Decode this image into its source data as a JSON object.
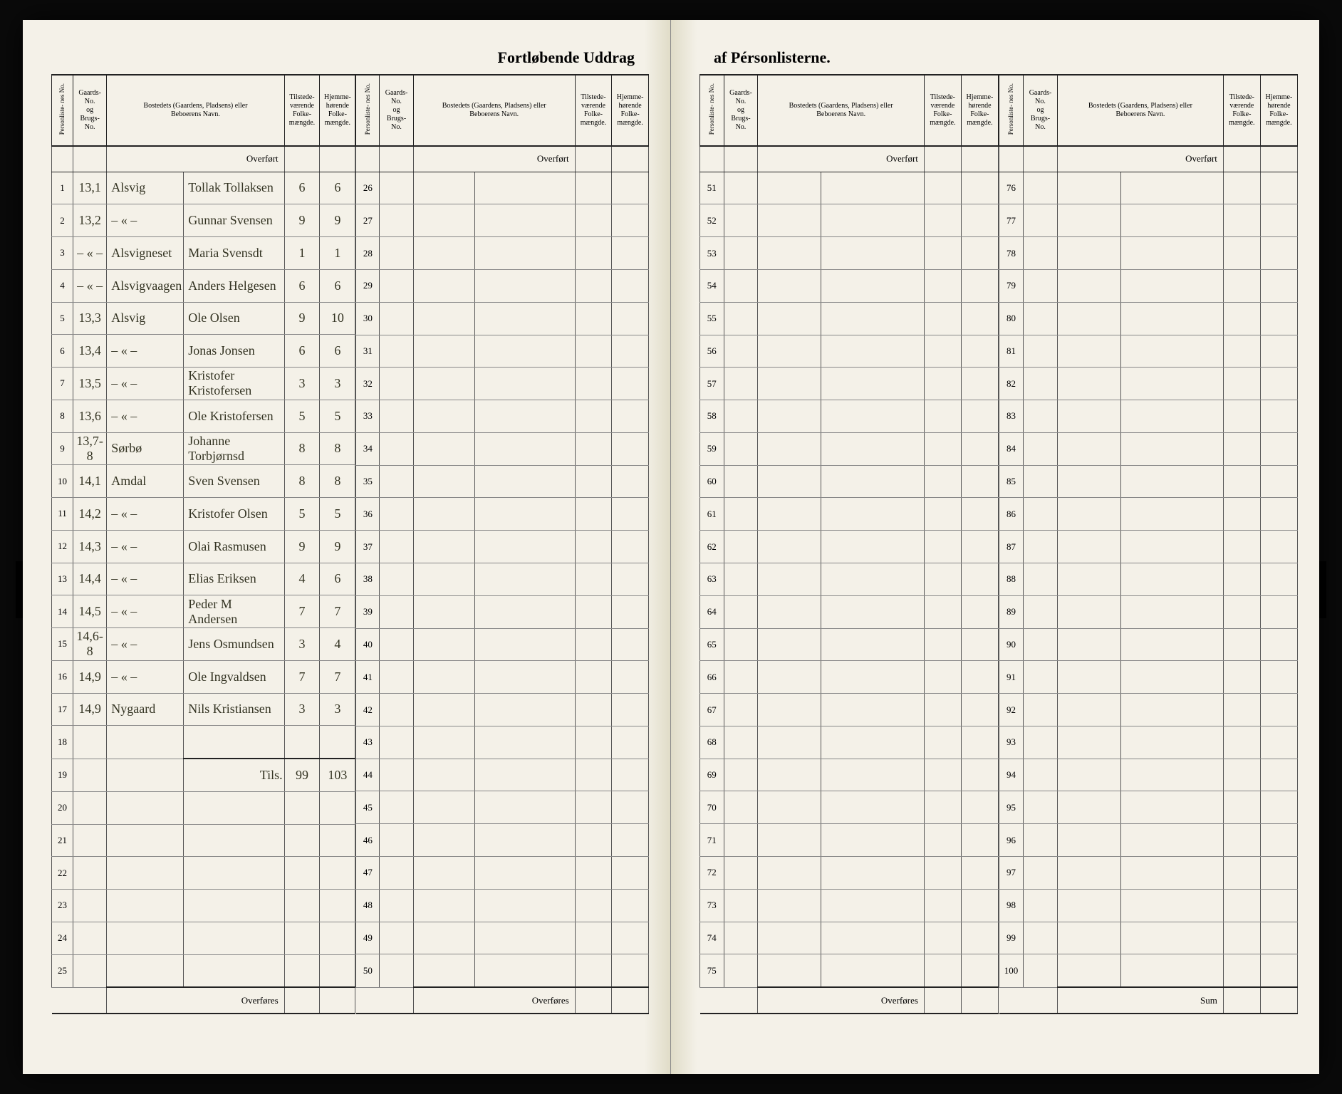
{
  "title_left": "Fortløbende Uddrag",
  "title_right": "af Pérsonlisterne.",
  "headers": {
    "personliste": "Personliste-\nnes No.",
    "gaard": "Gaards-\nNo.\nog\nBrugs-\nNo.",
    "bosted": "Bostedets (Gaardens, Pladsens) eller\nBeboerens Navn.",
    "tilstede": "Tilstede-\nværende\nFolke-\nmængde.",
    "hjemme": "Hjemme-\nhørende\nFolke-\nmængde."
  },
  "overfort": "Overført",
  "overfores": "Overføres",
  "sum": "Sum",
  "tils": "Tils.",
  "rows": [
    {
      "n": "1",
      "g": "13,1",
      "p": "Alsvig",
      "b": "Tollak Tollaksen",
      "t": "6",
      "h": "6"
    },
    {
      "n": "2",
      "g": "13,2",
      "p": "– « –",
      "b": "Gunnar Svensen",
      "t": "9",
      "h": "9"
    },
    {
      "n": "3",
      "g": "– « –",
      "p": "Alsvigneset",
      "b": "Maria Svensdt",
      "t": "1",
      "h": "1"
    },
    {
      "n": "4",
      "g": "– « –",
      "p": "Alsvigvaagen",
      "b": "Anders Helgesen",
      "t": "6",
      "h": "6"
    },
    {
      "n": "5",
      "g": "13,3",
      "p": "Alsvig",
      "b": "Ole Olsen",
      "t": "9",
      "h": "10"
    },
    {
      "n": "6",
      "g": "13,4",
      "p": "– « –",
      "b": "Jonas Jonsen",
      "t": "6",
      "h": "6"
    },
    {
      "n": "7",
      "g": "13,5",
      "p": "– « –",
      "b": "Kristofer Kristofersen",
      "t": "3",
      "h": "3"
    },
    {
      "n": "8",
      "g": "13,6",
      "p": "– « –",
      "b": "Ole Kristofersen",
      "t": "5",
      "h": "5"
    },
    {
      "n": "9",
      "g": "13,7-8",
      "p": "Sørbø",
      "b": "Johanne Torbjørnsd",
      "t": "8",
      "h": "8"
    },
    {
      "n": "10",
      "g": "14,1",
      "p": "Amdal",
      "b": "Sven Svensen",
      "t": "8",
      "h": "8"
    },
    {
      "n": "11",
      "g": "14,2",
      "p": "– « –",
      "b": "Kristofer Olsen",
      "t": "5",
      "h": "5"
    },
    {
      "n": "12",
      "g": "14,3",
      "p": "– « –",
      "b": "Olai Rasmusen",
      "t": "9",
      "h": "9"
    },
    {
      "n": "13",
      "g": "14,4",
      "p": "– « –",
      "b": "Elias Eriksen",
      "t": "4",
      "h": "6"
    },
    {
      "n": "14",
      "g": "14,5",
      "p": "– « –",
      "b": "Peder M Andersen",
      "t": "7",
      "h": "7"
    },
    {
      "n": "15",
      "g": "14,6-8",
      "p": "– « –",
      "b": "Jens Osmundsen",
      "t": "3",
      "h": "4"
    },
    {
      "n": "16",
      "g": "14,9",
      "p": "– « –",
      "b": "Ole Ingvaldsen",
      "t": "7",
      "h": "7"
    },
    {
      "n": "17",
      "g": "14,9",
      "p": "Nygaard",
      "b": "Nils Kristiansen",
      "t": "3",
      "h": "3"
    }
  ],
  "total_t": "99",
  "total_h": "103",
  "blocks": [
    {
      "start": 1,
      "end": 25,
      "footer": "Overføres",
      "filled": true
    },
    {
      "start": 26,
      "end": 50,
      "footer": "Overføres",
      "filled": false
    },
    {
      "start": 51,
      "end": 75,
      "footer": "Overføres",
      "filled": false
    },
    {
      "start": 76,
      "end": 100,
      "footer": "Sum",
      "filled": false
    }
  ]
}
